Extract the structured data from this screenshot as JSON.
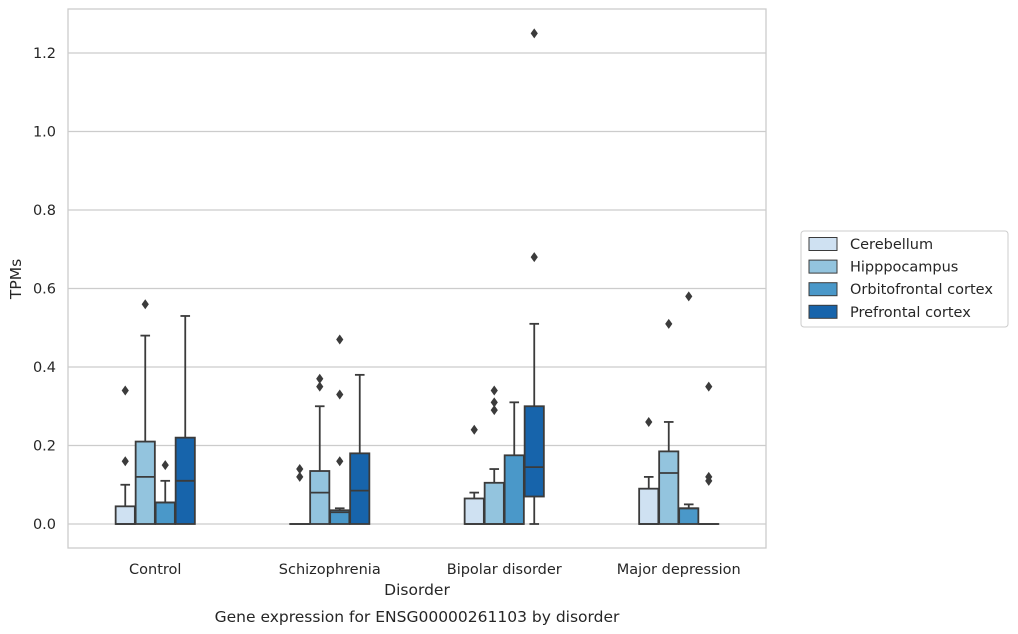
{
  "chart_data": {
    "type": "box",
    "title": "",
    "caption": "Gene expression for ENSG00000261103 by disorder",
    "xlabel": "Disorder",
    "ylabel": "TPMs",
    "ylim": [
      -0.06,
      1.32
    ],
    "yticks": [
      0.0,
      0.2,
      0.4,
      0.6,
      0.8,
      1.0,
      1.2
    ],
    "ytick_labels": [
      "0.0",
      "0.2",
      "0.4",
      "0.6",
      "0.8",
      "1.0",
      "1.2"
    ],
    "categories": [
      "Control",
      "Schizophrenia",
      "Bipolar disorder",
      "Major depression"
    ],
    "grid": "horizontal",
    "legend_position": "right",
    "series": [
      {
        "name": "Cerebellum",
        "color": "#cfe1f2",
        "boxes": [
          {
            "q1": 0.0,
            "median": 0.0,
            "q3": 0.045,
            "whislo": 0.0,
            "whishi": 0.1,
            "fliers": [
              0.16,
              0.34
            ]
          },
          {
            "q1": 0.0,
            "median": 0.0,
            "q3": 0.0,
            "whislo": 0.0,
            "whishi": 0.0,
            "fliers": [
              0.12,
              0.14
            ]
          },
          {
            "q1": 0.0,
            "median": 0.0,
            "q3": 0.065,
            "whislo": 0.0,
            "whishi": 0.08,
            "fliers": [
              0.24
            ]
          },
          {
            "q1": 0.0,
            "median": 0.0,
            "q3": 0.09,
            "whislo": 0.0,
            "whishi": 0.12,
            "fliers": [
              0.26
            ]
          }
        ]
      },
      {
        "name": "Hipppocampus",
        "color": "#93c4de",
        "boxes": [
          {
            "q1": 0.0,
            "median": 0.12,
            "q3": 0.21,
            "whislo": 0.0,
            "whishi": 0.48,
            "fliers": [
              0.56
            ]
          },
          {
            "q1": 0.0,
            "median": 0.08,
            "q3": 0.135,
            "whislo": 0.0,
            "whishi": 0.3,
            "fliers": [
              0.35,
              0.37
            ]
          },
          {
            "q1": 0.0,
            "median": 0.0,
            "q3": 0.105,
            "whislo": 0.0,
            "whishi": 0.14,
            "fliers": [
              0.29,
              0.31,
              0.34
            ]
          },
          {
            "q1": 0.0,
            "median": 0.13,
            "q3": 0.185,
            "whislo": 0.0,
            "whishi": 0.26,
            "fliers": [
              0.51
            ]
          }
        ]
      },
      {
        "name": "Orbitofrontal cortex",
        "color": "#4a98c9",
        "boxes": [
          {
            "q1": 0.0,
            "median": 0.055,
            "q3": 0.055,
            "whislo": 0.0,
            "whishi": 0.11,
            "fliers": [
              0.15
            ]
          },
          {
            "q1": 0.0,
            "median": 0.03,
            "q3": 0.035,
            "whislo": 0.0,
            "whishi": 0.04,
            "fliers": [
              0.16,
              0.33,
              0.47
            ]
          },
          {
            "q1": 0.0,
            "median": 0.0,
            "q3": 0.175,
            "whislo": 0.0,
            "whishi": 0.31,
            "fliers": []
          },
          {
            "q1": 0.0,
            "median": 0.04,
            "q3": 0.04,
            "whislo": 0.0,
            "whishi": 0.05,
            "fliers": [
              0.58
            ]
          }
        ]
      },
      {
        "name": "Prefrontal cortex",
        "color": "#1764ab",
        "boxes": [
          {
            "q1": 0.0,
            "median": 0.11,
            "q3": 0.22,
            "whislo": 0.0,
            "whishi": 0.53,
            "fliers": []
          },
          {
            "q1": 0.0,
            "median": 0.085,
            "q3": 0.18,
            "whislo": 0.0,
            "whishi": 0.38,
            "fliers": []
          },
          {
            "q1": 0.07,
            "median": 0.145,
            "q3": 0.3,
            "whislo": 0.0,
            "whishi": 0.51,
            "fliers": [
              0.68,
              1.25
            ]
          },
          {
            "q1": 0.0,
            "median": 0.0,
            "q3": 0.0,
            "whislo": 0.0,
            "whishi": 0.0,
            "fliers": [
              0.11,
              0.12,
              0.35
            ]
          }
        ]
      }
    ]
  }
}
